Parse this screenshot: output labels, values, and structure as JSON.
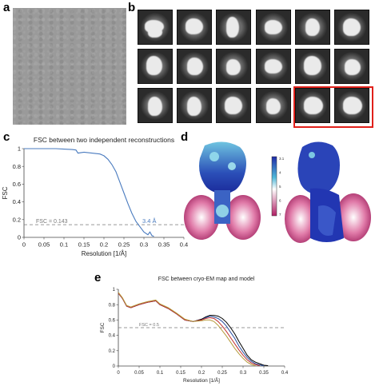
{
  "panels": {
    "a": {
      "letter": "a"
    },
    "b": {
      "letter": "b",
      "rows": 3,
      "cols": 6,
      "highlighted": [
        [
          2,
          4
        ],
        [
          2,
          5
        ]
      ]
    },
    "c": {
      "letter": "c"
    },
    "d": {
      "letter": "d",
      "colorbar": {
        "ticks": [
          "3.1",
          "4",
          "5",
          "6",
          "7"
        ]
      }
    },
    "e": {
      "letter": "e"
    }
  },
  "chart_data": [
    {
      "type": "line",
      "title": "FSC between two independent reconstructions",
      "xlabel": "Resolution [1/Å]",
      "ylabel": "FSC",
      "xlim": [
        0,
        0.4
      ],
      "ylim": [
        0,
        1
      ],
      "xticks": [
        "0",
        "0.05",
        "0.1",
        "0.15",
        "0.2",
        "0.25",
        "0.3",
        "0.35",
        "0.4"
      ],
      "yticks": [
        "0",
        "0.2",
        "0.4",
        "0.6",
        "0.8",
        "1"
      ],
      "grid": false,
      "threshold": {
        "y": 0.143,
        "label": "FSC = 0.143"
      },
      "annotation": {
        "x": 0.29,
        "y": 0.143,
        "label": "3.4 Å"
      },
      "series": [
        {
          "color": "#4a7bbf",
          "x": [
            0,
            0.02,
            0.05,
            0.08,
            0.1,
            0.12,
            0.13,
            0.135,
            0.15,
            0.17,
            0.19,
            0.2,
            0.21,
            0.22,
            0.23,
            0.24,
            0.25,
            0.26,
            0.27,
            0.28,
            0.29,
            0.3,
            0.31,
            0.315,
            0.32,
            0.325
          ],
          "y": [
            1,
            1,
            1,
            1,
            0.995,
            0.99,
            0.985,
            0.95,
            0.96,
            0.95,
            0.94,
            0.92,
            0.88,
            0.82,
            0.74,
            0.62,
            0.5,
            0.38,
            0.27,
            0.18,
            0.12,
            0.06,
            0.03,
            0.06,
            0.02,
            0.01
          ]
        }
      ]
    },
    {
      "type": "line",
      "title": "FSC between cryo-EM map and model",
      "xlabel": "Resolution [1/Å]",
      "ylabel": "FSC",
      "xlim": [
        0,
        0.4
      ],
      "ylim": [
        0,
        1
      ],
      "xticks": [
        "0",
        "0.05",
        "0.1",
        "0.15",
        "0.2",
        "0.25",
        "0.3",
        "0.35",
        "0.4"
      ],
      "yticks": [
        "0",
        "0.2",
        "0.4",
        "0.6",
        "0.8",
        "1"
      ],
      "grid": false,
      "threshold": {
        "y": 0.5,
        "label": "FSC = 0.5"
      },
      "series": [
        {
          "color": "#000000",
          "x": [
            0,
            0.01,
            0.02,
            0.03,
            0.05,
            0.07,
            0.09,
            0.1,
            0.12,
            0.14,
            0.16,
            0.18,
            0.2,
            0.21,
            0.22,
            0.23,
            0.24,
            0.25,
            0.26,
            0.27,
            0.28,
            0.29,
            0.3,
            0.31,
            0.32,
            0.33,
            0.34,
            0.35,
            0.36
          ],
          "y": [
            0.95,
            0.88,
            0.78,
            0.76,
            0.8,
            0.83,
            0.85,
            0.8,
            0.75,
            0.68,
            0.6,
            0.58,
            0.61,
            0.64,
            0.66,
            0.66,
            0.65,
            0.62,
            0.57,
            0.5,
            0.42,
            0.32,
            0.23,
            0.14,
            0.08,
            0.05,
            0.03,
            0.01,
            0.005
          ]
        },
        {
          "color": "#2a4fa0",
          "x": [
            0,
            0.01,
            0.02,
            0.03,
            0.05,
            0.07,
            0.09,
            0.1,
            0.12,
            0.14,
            0.16,
            0.18,
            0.2,
            0.21,
            0.22,
            0.23,
            0.24,
            0.25,
            0.26,
            0.27,
            0.28,
            0.29,
            0.3,
            0.31,
            0.32,
            0.33,
            0.34,
            0.35
          ],
          "y": [
            0.95,
            0.88,
            0.78,
            0.76,
            0.8,
            0.83,
            0.85,
            0.8,
            0.75,
            0.68,
            0.6,
            0.58,
            0.6,
            0.63,
            0.65,
            0.64,
            0.62,
            0.58,
            0.52,
            0.44,
            0.36,
            0.26,
            0.18,
            0.11,
            0.06,
            0.03,
            0.015,
            0.005
          ]
        },
        {
          "color": "#c03030",
          "x": [
            0,
            0.01,
            0.02,
            0.03,
            0.05,
            0.07,
            0.09,
            0.1,
            0.12,
            0.14,
            0.16,
            0.18,
            0.2,
            0.21,
            0.22,
            0.23,
            0.24,
            0.25,
            0.26,
            0.27,
            0.28,
            0.29,
            0.3,
            0.31,
            0.32,
            0.33,
            0.34
          ],
          "y": [
            0.95,
            0.88,
            0.78,
            0.76,
            0.8,
            0.83,
            0.85,
            0.8,
            0.75,
            0.68,
            0.6,
            0.58,
            0.6,
            0.62,
            0.63,
            0.62,
            0.58,
            0.52,
            0.45,
            0.37,
            0.29,
            0.21,
            0.14,
            0.08,
            0.04,
            0.02,
            0.005
          ]
        },
        {
          "color": "#b59a3a",
          "x": [
            0,
            0.01,
            0.02,
            0.03,
            0.05,
            0.07,
            0.09,
            0.1,
            0.12,
            0.14,
            0.16,
            0.18,
            0.2,
            0.21,
            0.22,
            0.23,
            0.24,
            0.25,
            0.26,
            0.27,
            0.28,
            0.29,
            0.3,
            0.31,
            0.32,
            0.33
          ],
          "y": [
            0.96,
            0.89,
            0.79,
            0.77,
            0.81,
            0.84,
            0.86,
            0.81,
            0.76,
            0.69,
            0.61,
            0.58,
            0.59,
            0.6,
            0.6,
            0.58,
            0.53,
            0.46,
            0.39,
            0.31,
            0.23,
            0.16,
            0.1,
            0.05,
            0.02,
            0.005
          ]
        }
      ]
    }
  ]
}
